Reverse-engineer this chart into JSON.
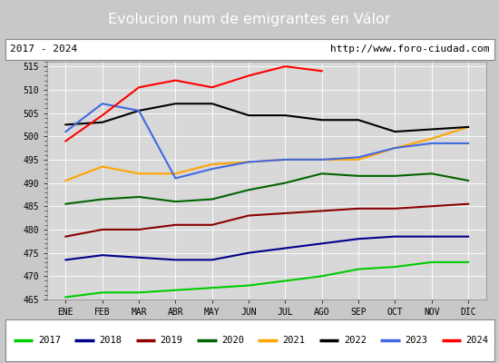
{
  "title": "Evolucion num de emigrantes en Válor",
  "subtitle_left": "2017 - 2024",
  "subtitle_right": "http://www.foro-ciudad.com",
  "months": [
    "ENE",
    "FEB",
    "MAR",
    "ABR",
    "MAY",
    "JUN",
    "JUL",
    "AGO",
    "SEP",
    "OCT",
    "NOV",
    "DIC"
  ],
  "ylim": [
    465,
    516
  ],
  "yticks": [
    465,
    470,
    475,
    480,
    485,
    490,
    495,
    500,
    505,
    510,
    515
  ],
  "series": {
    "2017": {
      "color": "#00cc00",
      "data": [
        465.5,
        466.5,
        466.5,
        467.0,
        467.5,
        468.0,
        469.0,
        470.0,
        471.5,
        472.0,
        473.0,
        473.0
      ]
    },
    "2018": {
      "color": "#00008b",
      "data": [
        473.5,
        474.5,
        474.0,
        473.5,
        473.5,
        475.0,
        476.0,
        477.0,
        478.0,
        478.5,
        478.5,
        478.5
      ]
    },
    "2019": {
      "color": "#8b0000",
      "data": [
        478.5,
        480.0,
        480.0,
        481.0,
        481.0,
        483.0,
        483.5,
        484.0,
        484.5,
        484.5,
        485.0,
        485.5
      ]
    },
    "2020": {
      "color": "#006400",
      "data": [
        485.5,
        486.5,
        487.0,
        486.0,
        486.5,
        488.5,
        490.0,
        492.0,
        491.5,
        491.5,
        492.0,
        490.5
      ]
    },
    "2021": {
      "color": "#ffa500",
      "data": [
        490.5,
        493.5,
        492.0,
        492.0,
        494.0,
        494.5,
        495.0,
        495.0,
        495.0,
        497.5,
        499.5,
        502.0
      ]
    },
    "2022": {
      "color": "#000000",
      "data": [
        502.5,
        503.0,
        505.5,
        507.0,
        507.0,
        504.5,
        504.5,
        503.5,
        503.5,
        501.0,
        501.5,
        502.0
      ]
    },
    "2023": {
      "color": "#4169e1",
      "data": [
        501.0,
        507.0,
        505.5,
        491.0,
        493.0,
        494.5,
        495.0,
        495.0,
        495.5,
        497.5,
        498.5,
        498.5
      ]
    },
    "2024": {
      "color": "#ff0000",
      "data": [
        499.0,
        504.5,
        510.5,
        512.0,
        510.5,
        513.0,
        515.0,
        514.0,
        null,
        null,
        null,
        null
      ]
    }
  },
  "fig_bg_color": "#c8c8c8",
  "plot_bg_color": "#d8d8d8",
  "title_bg_color": "#5b8ed6",
  "title_text_color": "#ffffff",
  "header_bg_color": "#ffffff",
  "legend_bg_color": "#ffffff"
}
